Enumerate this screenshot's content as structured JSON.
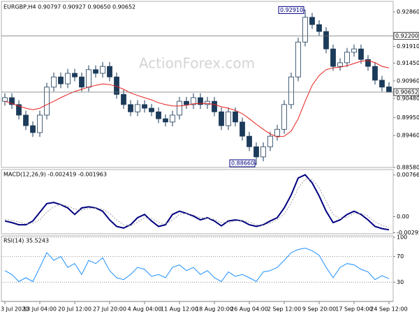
{
  "chart_data": [
    {
      "type": "candlestick",
      "title": "EURGBP,H4  0.90797 0.90927 0.90650 0.90652",
      "watermark": "ActionForex.com",
      "color": "#1c3b5a",
      "categories": [
        "3 Jul 2020",
        null,
        null,
        null,
        null,
        "13 Jul 04:00",
        null,
        null,
        null,
        null,
        "20 Jul 12:00",
        null,
        null,
        null,
        null,
        "27 Jul 20:00",
        null,
        null,
        null,
        null,
        "4 Aug 04:00",
        null,
        null,
        null,
        null,
        "11 Aug 12:00",
        null,
        null,
        null,
        null,
        "18 Aug 20:00",
        null,
        null,
        null,
        null,
        "26 Aug 04:00",
        null,
        null,
        null,
        null,
        "2 Sep 12:00",
        null,
        null,
        null,
        null,
        "9 Sep 20:00",
        null,
        null,
        null,
        null,
        "17 Sep 04:00",
        null,
        null,
        null,
        null,
        "24 Sep 12:00"
      ],
      "open": [
        0.904,
        0.905,
        0.9031,
        0.9002,
        0.8973,
        0.8954,
        0.9002,
        0.9079,
        0.9107,
        0.9088,
        0.9117,
        0.9107,
        0.9079,
        0.9127,
        0.9117,
        0.9136,
        0.9107,
        0.9059,
        0.9031,
        0.9011,
        0.9031,
        0.9021,
        0.9011,
        0.8992,
        0.8983,
        0.9002,
        0.904,
        0.9031,
        0.905,
        0.9031,
        0.904,
        0.9011,
        0.8973,
        0.9011,
        0.8983,
        0.8944,
        0.8915,
        0.8887,
        0.8915,
        0.8944,
        0.8963,
        0.9031,
        0.9107,
        0.9203,
        0.9271,
        0.9251,
        0.9232,
        0.9184,
        0.9136,
        0.9146,
        0.9175,
        0.9184,
        0.9155,
        0.9136,
        0.9098,
        0.90797
      ],
      "high": [
        0.9062,
        0.9062,
        0.9043,
        0.9014,
        0.8985,
        0.9014,
        0.9091,
        0.9119,
        0.9119,
        0.9129,
        0.9129,
        0.9119,
        0.9139,
        0.9139,
        0.9148,
        0.9148,
        0.9119,
        0.9071,
        0.9043,
        0.9043,
        0.9043,
        0.9033,
        0.9023,
        0.9004,
        0.9014,
        0.9052,
        0.9052,
        0.9062,
        0.9062,
        0.9052,
        0.9052,
        0.9023,
        0.9023,
        0.9023,
        0.8995,
        0.8956,
        0.8927,
        0.8927,
        0.8956,
        0.8975,
        0.9043,
        0.9119,
        0.9215,
        0.9291,
        0.9283,
        0.9263,
        0.9244,
        0.9196,
        0.9158,
        0.9187,
        0.9196,
        0.9196,
        0.9167,
        0.9148,
        0.911,
        0.90927
      ],
      "low": [
        0.9028,
        0.9019,
        0.899,
        0.8961,
        0.8942,
        0.8942,
        0.899,
        0.9067,
        0.9076,
        0.9076,
        0.9095,
        0.9067,
        0.9067,
        0.9105,
        0.9105,
        0.9095,
        0.9047,
        0.9019,
        0.8999,
        0.8999,
        0.9009,
        0.8999,
        0.898,
        0.8971,
        0.8971,
        0.899,
        0.9019,
        0.9019,
        0.9019,
        0.9019,
        0.8999,
        0.8961,
        0.8961,
        0.8971,
        0.8932,
        0.8903,
        0.8866,
        0.8875,
        0.8903,
        0.8932,
        0.8951,
        0.9019,
        0.9095,
        0.9191,
        0.9239,
        0.922,
        0.9172,
        0.9124,
        0.9124,
        0.9134,
        0.9163,
        0.9143,
        0.9124,
        0.9086,
        0.9067,
        0.9065
      ],
      "close": [
        0.905,
        0.9031,
        0.9002,
        0.8973,
        0.8954,
        0.9002,
        0.9079,
        0.9107,
        0.9088,
        0.9117,
        0.9107,
        0.9079,
        0.9127,
        0.9117,
        0.9136,
        0.9107,
        0.9059,
        0.9031,
        0.9011,
        0.9031,
        0.9021,
        0.9011,
        0.8992,
        0.8983,
        0.9002,
        0.904,
        0.9031,
        0.905,
        0.9031,
        0.904,
        0.9011,
        0.8973,
        0.9011,
        0.8983,
        0.8944,
        0.8915,
        0.8887,
        0.8915,
        0.8944,
        0.8963,
        0.9031,
        0.9107,
        0.9203,
        0.9271,
        0.9251,
        0.9232,
        0.9184,
        0.9136,
        0.9146,
        0.9175,
        0.9184,
        0.9155,
        0.9136,
        0.9098,
        0.9079,
        0.90652
      ],
      "series": [
        {
          "color": "#e8201c",
          "values": [
            0.904,
            0.9034,
            0.9027,
            0.9021,
            0.9017,
            0.9021,
            0.9031,
            0.904,
            0.905,
            0.9059,
            0.9067,
            0.9073,
            0.9079,
            0.9084,
            0.9088,
            0.9086,
            0.9081,
            0.9073,
            0.9063,
            0.9056,
            0.905,
            0.9044,
            0.9036,
            0.9031,
            0.9027,
            0.9027,
            0.9029,
            0.9033,
            0.9034,
            0.9034,
            0.9031,
            0.9025,
            0.9021,
            0.9015,
            0.9006,
            0.8992,
            0.8977,
            0.8963,
            0.895,
            0.8942,
            0.8944,
            0.8958,
            0.8992,
            0.904,
            0.9084,
            0.9111,
            0.9127,
            0.9132,
            0.9134,
            0.9138,
            0.9144,
            0.915,
            0.9152,
            0.9146,
            0.9136,
            0.9132
          ]
        }
      ],
      "levels": [
        {
          "value": 0.922,
          "label": "0.92200"
        },
        {
          "value": 0.90652,
          "label": "0.90652"
        }
      ],
      "annotations": [
        {
          "text": "0.92910",
          "value": 0.9291,
          "index": 43
        },
        {
          "text": "0.88660",
          "value": 0.8866,
          "index": 36
        }
      ],
      "ylim": [
        0.8858,
        0.9309
      ],
      "yticks": [
        {
          "value": 0.9286,
          "label": "0.92860"
        },
        {
          "value": 0.9191,
          "label": "0.91910"
        },
        {
          "value": 0.9145,
          "label": "0.91450"
        },
        {
          "value": 0.9096,
          "label": "0.90960"
        },
        {
          "value": 0.9048,
          "label": "0.90480"
        },
        {
          "value": 0.8995,
          "label": "0.89950"
        },
        {
          "value": 0.8946,
          "label": "0.89460"
        },
        {
          "value": 0.8858,
          "label": "0.88580"
        }
      ],
      "grid": false
    },
    {
      "type": "line",
      "title": "MACD(12,26,9) -0.002419 -0.001963",
      "series": [
        {
          "color": "#000080",
          "line_width": 2,
          "values": [
            -0.0008,
            -0.0011,
            -0.0015,
            -0.0015,
            -0.0008,
            0.0008,
            0.0024,
            0.0026,
            0.0022,
            0.0016,
            0.0004,
            0.0016,
            0.0018,
            0.0016,
            0.001,
            -0.0006,
            -0.0018,
            -0.0021,
            -0.0015,
            -0.0002,
            0.0004,
            -0.0008,
            -0.0018,
            -0.0015,
            0.0004,
            0.001,
            0.0006,
            0.0001,
            -0.0006,
            -0.0002,
            -0.0008,
            -0.0017,
            -0.0008,
            -0.0006,
            -0.0008,
            -0.0015,
            -0.0018,
            -0.0015,
            -0.0008,
            -0.0002,
            0.0016,
            0.004,
            0.0071,
            0.0077,
            0.0062,
            0.0038,
            0.001,
            -0.0011,
            -0.0006,
            0.0004,
            0.001,
            0.0004,
            -0.0006,
            -0.0018,
            -0.0022,
            -0.002419
          ]
        },
        {
          "color": "#a0a0a0",
          "line_width": 1,
          "dashed": true,
          "values": [
            -0.0005,
            -0.0007,
            -0.001,
            -0.0013,
            -0.0012,
            -0.0006,
            0.0008,
            0.0018,
            0.0022,
            0.002,
            0.0014,
            0.0012,
            0.0015,
            0.0016,
            0.0014,
            0.0006,
            -0.0006,
            -0.0015,
            -0.0017,
            -0.001,
            -0.0002,
            -0.0003,
            -0.0011,
            -0.0014,
            -0.0006,
            0.0004,
            0.0006,
            0.0003,
            -0.0002,
            -0.0003,
            -0.0005,
            -0.0011,
            -0.0011,
            -0.0008,
            -0.0007,
            -0.001,
            -0.0015,
            -0.0016,
            -0.0012,
            -0.0006,
            0.0005,
            0.0025,
            0.0052,
            0.0069,
            0.0068,
            0.0053,
            0.0028,
            0.0004,
            -0.0004,
            -0.0001,
            0.0006,
            0.0006,
            0.0001,
            -0.001,
            -0.0016,
            -0.001963
          ]
        }
      ],
      "ylim": [
        -0.00315,
        0.0084
      ],
      "yticks": [
        {
          "value": 0.007663,
          "label": "0.007663"
        },
        {
          "value": 0,
          "label": "0.00"
        },
        {
          "value": -0.002952,
          "label": "-0.002952"
        }
      ],
      "grid": false
    },
    {
      "type": "line",
      "title": "RSI(14) 35.5243",
      "series": [
        {
          "color": "#1e90ff",
          "line_width": 1,
          "values": [
            48,
            42,
            31,
            37,
            31,
            53,
            76,
            64,
            70,
            53,
            59,
            42,
            64,
            59,
            68,
            48,
            37,
            34,
            42,
            53,
            50,
            39,
            42,
            37,
            53,
            57,
            48,
            53,
            42,
            48,
            37,
            31,
            46,
            39,
            42,
            37,
            31,
            46,
            48,
            53,
            64,
            76,
            81,
            83,
            79,
            72,
            53,
            37,
            53,
            59,
            57,
            50,
            46,
            34,
            40,
            35.5243
          ]
        }
      ],
      "ylim": [
        0,
        100
      ],
      "yticks": [
        100,
        70,
        30
      ],
      "grid": true
    }
  ]
}
